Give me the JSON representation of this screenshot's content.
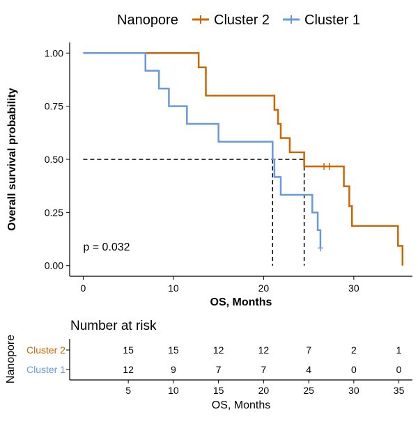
{
  "chart_data": {
    "type": "line",
    "subtype": "kaplan-meier",
    "legend": {
      "title": "Nanopore",
      "position": "top",
      "entries": [
        "Cluster 2",
        "Cluster 1"
      ]
    },
    "xlabel": "OS, Months",
    "ylabel": "Overall survival probability",
    "xlim": [
      -1.5,
      36.5
    ],
    "ylim": [
      -0.05,
      1.05
    ],
    "x_ticks": [
      0,
      10,
      20,
      30
    ],
    "x_tick_labels": [
      "0",
      "10",
      "20",
      "30"
    ],
    "y_ticks": [
      0,
      0.25,
      0.5,
      0.75,
      1.0
    ],
    "y_tick_labels": [
      "0.00",
      "0.25",
      "0.50",
      "0.75",
      "1.00"
    ],
    "grid": false,
    "annotation": "p = 0.032",
    "annotation_at": [
      0,
      0.09
    ],
    "median_survival": [
      {
        "series": "Cluster 1",
        "x": 21.0,
        "y": 0.5
      },
      {
        "series": "Cluster 2",
        "x": 24.5,
        "y": 0.5
      }
    ],
    "series": [
      {
        "name": "Cluster 2",
        "color": "#cc6600",
        "steps": [
          [
            0,
            1.0
          ],
          [
            12.8,
            0.933
          ],
          [
            13.6,
            0.8
          ],
          [
            21.2,
            0.733
          ],
          [
            21.6,
            0.667
          ],
          [
            21.9,
            0.6
          ],
          [
            22.9,
            0.533
          ],
          [
            24.5,
            0.467
          ],
          [
            28.9,
            0.373
          ],
          [
            29.5,
            0.28
          ],
          [
            29.8,
            0.187
          ],
          [
            34.9,
            0.093
          ],
          [
            35.4,
            0.0
          ]
        ],
        "end_x": 35.4,
        "censored": [
          {
            "x": 26.7,
            "y": 0.467
          },
          {
            "x": 27.3,
            "y": 0.467
          }
        ]
      },
      {
        "name": "Cluster 1",
        "color": "#6699dd",
        "steps": [
          [
            0,
            1.0
          ],
          [
            6.9,
            0.917
          ],
          [
            8.4,
            0.833
          ],
          [
            9.5,
            0.75
          ],
          [
            11.5,
            0.667
          ],
          [
            15.0,
            0.583
          ],
          [
            21.0,
            0.5
          ],
          [
            21.2,
            0.417
          ],
          [
            21.9,
            0.333
          ],
          [
            25.4,
            0.25
          ],
          [
            26.0,
            0.167
          ],
          [
            26.3,
            0.083
          ]
        ],
        "end_x": 26.3,
        "censored": [
          {
            "x": 26.3,
            "y": 0.083
          }
        ]
      }
    ]
  },
  "risk_table": {
    "title": "Number at risk",
    "axis_title": "Nanopore",
    "xlabel": "OS, Months",
    "x_ticks": [
      5,
      10,
      15,
      20,
      25,
      30,
      35
    ],
    "x_tick_labels": [
      "5",
      "10",
      "15",
      "20",
      "25",
      "30",
      "35"
    ],
    "rows": [
      {
        "label": "Cluster 2",
        "color": "#cc6600",
        "values": [
          "15",
          "15",
          "12",
          "12",
          "7",
          "2",
          "1"
        ]
      },
      {
        "label": "Cluster 1",
        "color": "#6699dd",
        "values": [
          "12",
          "9",
          "7",
          "7",
          "4",
          "0",
          "0"
        ]
      }
    ]
  }
}
